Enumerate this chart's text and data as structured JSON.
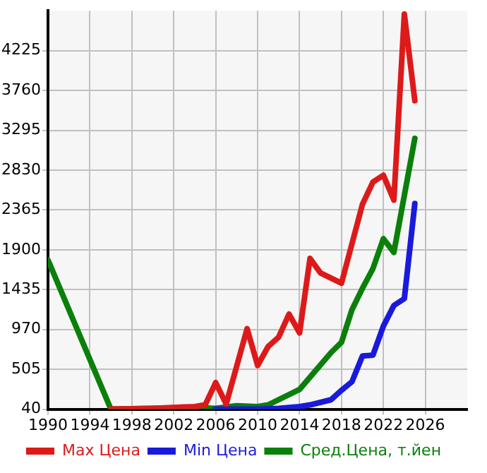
{
  "chart_data": {
    "type": "line",
    "xlim": [
      1990,
      2030
    ],
    "xticks": [
      1990,
      1994,
      1998,
      2002,
      2006,
      2010,
      2014,
      2018,
      2022,
      2026
    ],
    "ylim": [
      40,
      4690
    ],
    "yticks": [
      40,
      505,
      970,
      1435,
      1900,
      2365,
      2830,
      3295,
      3760,
      4225
    ],
    "grid": true,
    "legend": "bottom",
    "marker": "none",
    "line_style": "solid",
    "series": [
      {
        "name": "Max Цена",
        "color": "#dd1a1a",
        "x": [
          1996,
          2000,
          2004,
          2005,
          2006,
          2007,
          2009,
          2010,
          2011,
          2012,
          2013,
          2014,
          2015,
          2016,
          2018,
          2020,
          2021,
          2022,
          2023,
          2024,
          2025
        ],
        "values": [
          40,
          50,
          70,
          90,
          350,
          100,
          980,
          550,
          770,
          880,
          1150,
          930,
          1800,
          1630,
          1510,
          2430,
          2690,
          2770,
          2480,
          4650,
          3640
        ]
      },
      {
        "name": "Min Цена",
        "color": "#1a1add",
        "x": [
          2006,
          2010,
          2012,
          2014,
          2015,
          2017,
          2018,
          2019,
          2020,
          2021,
          2022,
          2023,
          2024,
          2025
        ],
        "values": [
          40,
          40,
          50,
          70,
          90,
          150,
          260,
          360,
          660,
          670,
          1010,
          1250,
          1330,
          2440
        ]
      },
      {
        "name": "Сред.Цена, т.йен",
        "color": "#0a800a",
        "x": [
          1990,
          1996,
          2000,
          2004,
          2006,
          2008,
          2010,
          2011,
          2014,
          2017,
          2018,
          2019,
          2020,
          2021,
          2022,
          2023,
          2025
        ],
        "values": [
          1780,
          40,
          50,
          60,
          50,
          80,
          70,
          90,
          270,
          700,
          820,
          1200,
          1450,
          1680,
          2030,
          1870,
          3200
        ]
      }
    ]
  }
}
